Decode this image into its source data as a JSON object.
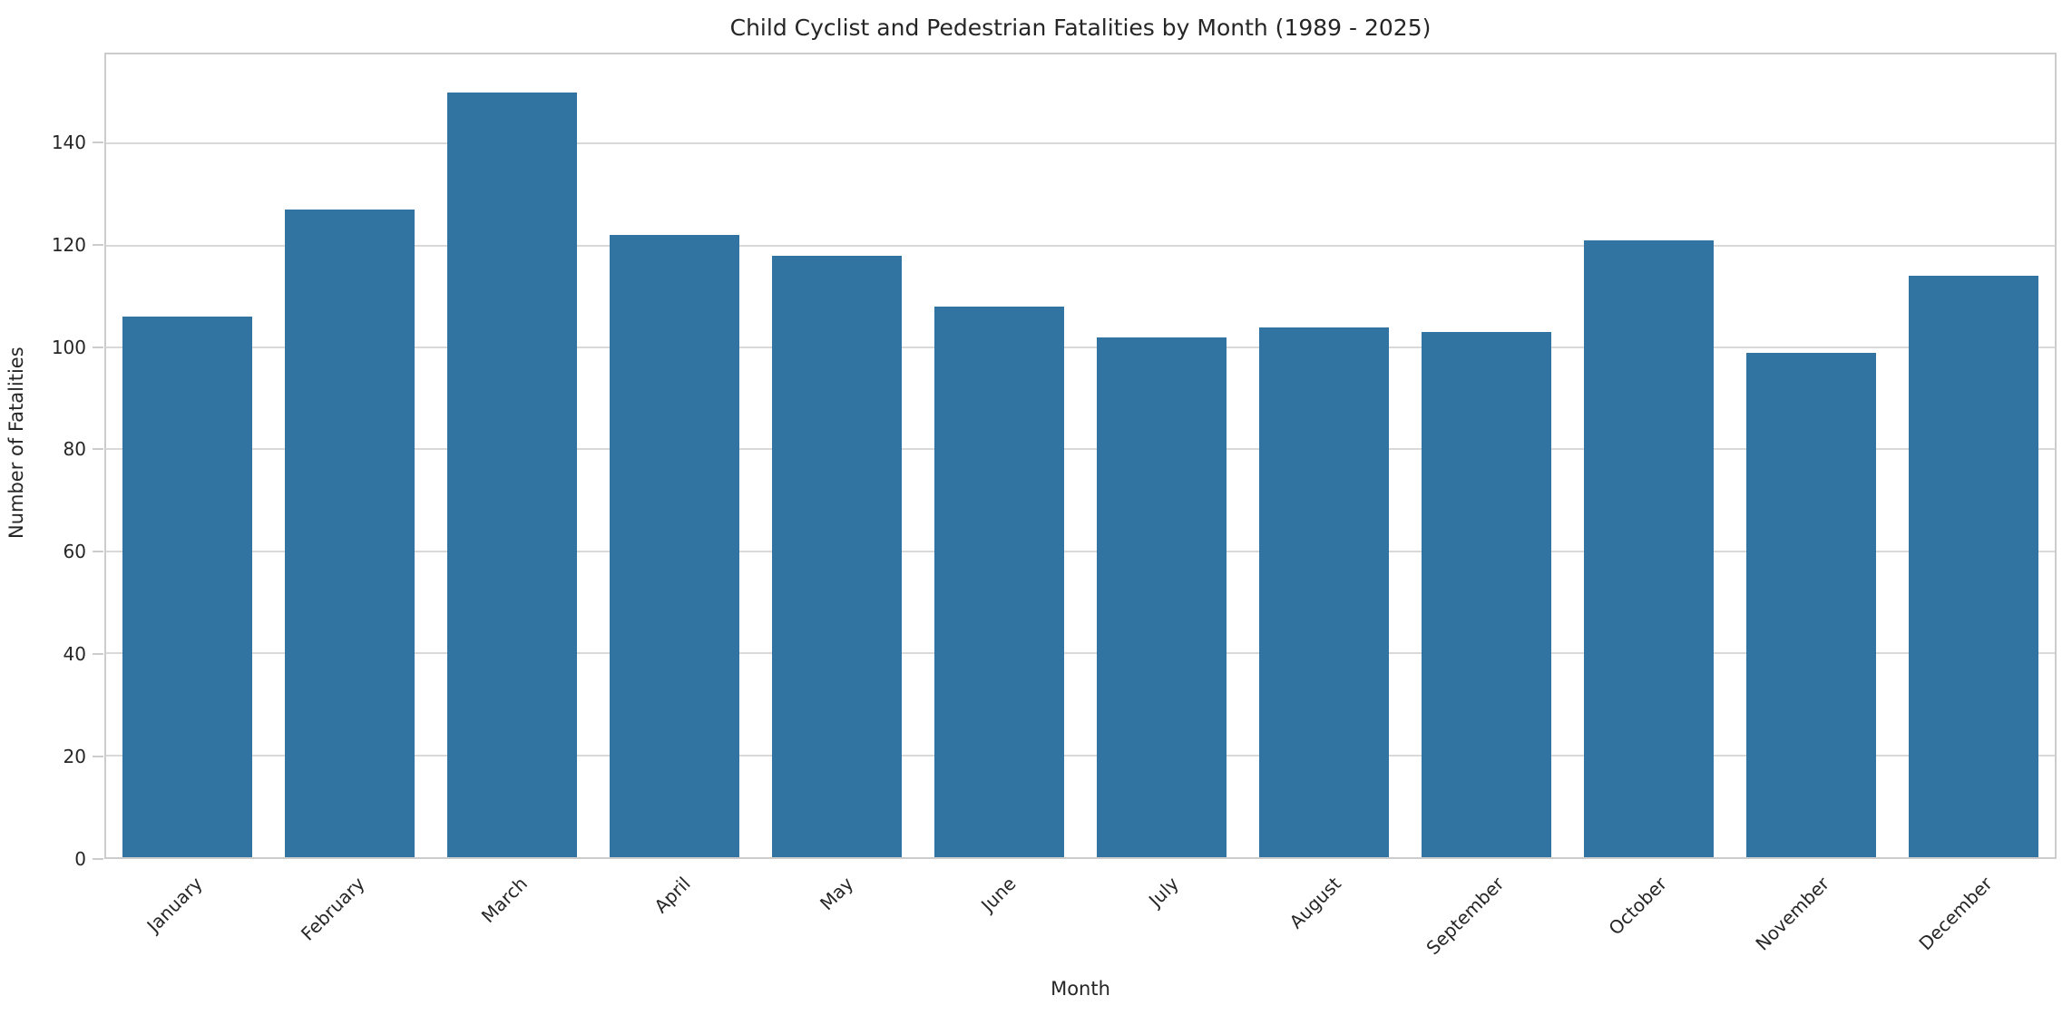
{
  "chart_data": {
    "type": "bar",
    "title": "Child Cyclist and Pedestrian Fatalities by Month (1989 - 2025)",
    "xlabel": "Month",
    "ylabel": "Number of Fatalities",
    "categories": [
      "January",
      "February",
      "March",
      "April",
      "May",
      "June",
      "July",
      "August",
      "September",
      "October",
      "November",
      "December"
    ],
    "values": [
      106,
      127,
      150,
      122,
      118,
      108,
      102,
      104,
      103,
      121,
      99,
      114
    ],
    "yticks": [
      0,
      20,
      40,
      60,
      80,
      100,
      120,
      140
    ],
    "ylim": [
      0,
      157.5
    ],
    "grid": "horizontal",
    "legend_position": "none",
    "xtick_rotation_deg": 45,
    "colors": {
      "bar": "#3274a1",
      "gridline": "#d9d9d9",
      "spine": "#cccccc",
      "text": "#262626"
    }
  }
}
